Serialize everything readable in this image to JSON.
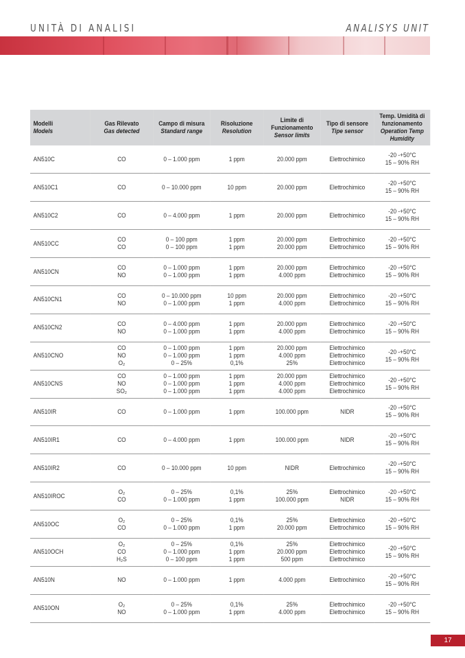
{
  "header": {
    "left": "UNITÀ DI ANALISI",
    "right": "ANALISYS UNIT"
  },
  "colors": {
    "accent": "#b8202c",
    "table_header": "#d5d6d8"
  },
  "columns": [
    {
      "it": "Modelli",
      "en": "Models"
    },
    {
      "it": "Gas Rilevato",
      "en": "Gas detected"
    },
    {
      "it": "Campo di misura",
      "en": "Standard range"
    },
    {
      "it": "Risoluzione",
      "en": "Resolution"
    },
    {
      "it": "Limite di Funzionamento",
      "en": "Sensor limits"
    },
    {
      "it": "Tipo di sensore",
      "en": "Tipe sensor"
    },
    {
      "it": "Temp. Umidità di funzionamento",
      "en": "Operation Temp Humidity"
    }
  ],
  "rows": [
    {
      "model": "AN510C",
      "gas": [
        "CO"
      ],
      "range": [
        "0 – 1.000 ppm"
      ],
      "res": [
        "1 ppm"
      ],
      "limit": [
        "20.000 ppm"
      ],
      "sensor": [
        "Elettrochimico"
      ],
      "temp": [
        "-20 -+50°C",
        "15 – 90% RH"
      ]
    },
    {
      "model": "AN510C1",
      "gas": [
        "CO"
      ],
      "range": [
        "0 – 10.000 ppm"
      ],
      "res": [
        "10 ppm"
      ],
      "limit": [
        "20.000 ppm"
      ],
      "sensor": [
        "Elettrochimico"
      ],
      "temp": [
        "-20 -+50°C",
        "15 – 90% RH"
      ]
    },
    {
      "model": "AN510C2",
      "gas": [
        "CO"
      ],
      "range": [
        "0 – 4.000 ppm"
      ],
      "res": [
        "1 ppm"
      ],
      "limit": [
        "20.000 ppm"
      ],
      "sensor": [
        "Elettrochimico"
      ],
      "temp": [
        "-20 -+50°C",
        "15 – 90% RH"
      ]
    },
    {
      "model": "AN510CC",
      "gas": [
        "CO",
        "CO"
      ],
      "range": [
        "0 – 100 ppm",
        "0 – 100 ppm"
      ],
      "res": [
        "1 ppm",
        "1 ppm"
      ],
      "limit": [
        "20.000 ppm",
        "20.000 ppm"
      ],
      "sensor": [
        "Elettrochimico",
        "Elettrochimico"
      ],
      "temp": [
        "-20 -+50°C",
        "15 – 90% RH"
      ]
    },
    {
      "model": "AN510CN",
      "gas": [
        "CO",
        "NO"
      ],
      "range": [
        "0 – 1.000 ppm",
        "0 – 1.000 ppm"
      ],
      "res": [
        "1 ppm",
        "1 ppm"
      ],
      "limit": [
        "20.000 ppm",
        "4.000 ppm"
      ],
      "sensor": [
        "Elettrochimico",
        "Elettrochimico"
      ],
      "temp": [
        "-20 -+50°C",
        "15 – 90% RH"
      ]
    },
    {
      "model": "AN510CN1",
      "gas": [
        "CO",
        "NO"
      ],
      "range": [
        "0 – 10.000 ppm",
        "0 – 1.000 ppm"
      ],
      "res": [
        "10 ppm",
        "1 ppm"
      ],
      "limit": [
        "20.000 ppm",
        "4.000 ppm"
      ],
      "sensor": [
        "Elettrochimico",
        "Elettrochimico"
      ],
      "temp": [
        "-20 -+50°C",
        "15 – 90% RH"
      ]
    },
    {
      "model": "AN510CN2",
      "gas": [
        "CO",
        "NO"
      ],
      "range": [
        "0 – 4.000 ppm",
        "0 – 1.000 ppm"
      ],
      "res": [
        "1 ppm",
        "1 ppm"
      ],
      "limit": [
        "20.000 ppm",
        "4.000 ppm"
      ],
      "sensor": [
        "Elettrochimico",
        "Elettrochimico"
      ],
      "temp": [
        "-20 -+50°C",
        "15 – 90% RH"
      ]
    },
    {
      "model": "AN510CNO",
      "gas": [
        "CO",
        "NO",
        "O₂"
      ],
      "range": [
        "0 – 1.000 ppm",
        "0 – 1.000 ppm",
        "0 – 25%"
      ],
      "res": [
        "1 ppm",
        "1 ppm",
        "0,1%"
      ],
      "limit": [
        "20.000 ppm",
        "4.000 ppm",
        "25%"
      ],
      "sensor": [
        "Elettrochimico",
        "Elettrochimico",
        "Elettrochimico"
      ],
      "temp": [
        "-20 -+50°C",
        "15 – 90% RH"
      ]
    },
    {
      "model": "AN510CNS",
      "gas": [
        "CO",
        "NO",
        "SO₂"
      ],
      "range": [
        "0 – 1.000 ppm",
        "0 – 1.000 ppm",
        "0 – 1.000 ppm"
      ],
      "res": [
        "1 ppm",
        "1 ppm",
        "1 ppm"
      ],
      "limit": [
        "20.000 ppm",
        "4.000 ppm",
        "4.000 ppm"
      ],
      "sensor": [
        "Elettrochimico",
        "Elettrochimico",
        "Elettrochimico"
      ],
      "temp": [
        "-20 -+50°C",
        "15 – 90% RH"
      ]
    },
    {
      "model": "AN510IR",
      "gas": [
        "CO"
      ],
      "range": [
        "0 – 1.000 ppm"
      ],
      "res": [
        "1 ppm"
      ],
      "limit": [
        "100.000 ppm"
      ],
      "sensor": [
        "NIDR"
      ],
      "temp": [
        "-20 -+50°C",
        "15 – 90% RH"
      ]
    },
    {
      "model": "AN510IR1",
      "gas": [
        "CO"
      ],
      "range": [
        "0 – 4.000 ppm"
      ],
      "res": [
        "1 ppm"
      ],
      "limit": [
        "100.000 ppm"
      ],
      "sensor": [
        "NIDR"
      ],
      "temp": [
        "-20 -+50°C",
        "15 – 90% RH"
      ]
    },
    {
      "model": "AN510IR2",
      "gas": [
        "CO"
      ],
      "range": [
        "0 – 10.000 ppm"
      ],
      "res": [
        "10 ppm"
      ],
      "limit": [
        "NIDR"
      ],
      "sensor": [
        "Elettrochimico"
      ],
      "temp": [
        "-20 -+50°C",
        "15 – 90% RH"
      ]
    },
    {
      "model": "AN510IROC",
      "gas": [
        "O₂",
        "CO"
      ],
      "range": [
        "0 – 25%",
        "0 – 1.000 ppm"
      ],
      "res": [
        "0,1%",
        "1 ppm"
      ],
      "limit": [
        "25%",
        "100.000 ppm"
      ],
      "sensor": [
        "Elettrochimico",
        "NIDR"
      ],
      "temp": [
        "-20 -+50°C",
        "15 – 90% RH"
      ]
    },
    {
      "model": "AN510OC",
      "gas": [
        "O₂",
        "CO"
      ],
      "range": [
        "0 – 25%",
        "0 – 1.000 ppm"
      ],
      "res": [
        "0,1%",
        "1 ppm"
      ],
      "limit": [
        "25%",
        "20.000 ppm"
      ],
      "sensor": [
        "Elettrochimico",
        "Elettrochimico"
      ],
      "temp": [
        "-20 -+50°C",
        "15 – 90% RH"
      ]
    },
    {
      "model": "AN510OCH",
      "gas": [
        "O₂",
        "CO",
        "H₂S"
      ],
      "range": [
        "0 – 25%",
        "0 – 1.000 ppm",
        "0 – 100 ppm"
      ],
      "res": [
        "0,1%",
        "1 ppm",
        "1 ppm"
      ],
      "limit": [
        "25%",
        "20.000 ppm",
        "500 ppm"
      ],
      "sensor": [
        "Elettrochimico",
        "Elettrochimico",
        "Elettrochimico"
      ],
      "temp": [
        "-20 -+50°C",
        "15 – 90% RH"
      ]
    },
    {
      "model": "AN510N",
      "gas": [
        "NO"
      ],
      "range": [
        "0 – 1.000 ppm"
      ],
      "res": [
        "1 ppm"
      ],
      "limit": [
        "4.000 ppm"
      ],
      "sensor": [
        "Elettrochimico"
      ],
      "temp": [
        "-20 -+50°C",
        "15 – 90% RH"
      ]
    },
    {
      "model": "AN510ON",
      "gas": [
        "O₂",
        "NO"
      ],
      "range": [
        "0 – 25%",
        "0 – 1.000 ppm"
      ],
      "res": [
        "0,1%",
        "1 ppm"
      ],
      "limit": [
        "25%",
        "4.000 ppm"
      ],
      "sensor": [
        "Elettrochimico",
        "Elettrochimico"
      ],
      "temp": [
        "-20 -+50°C",
        "15 – 90% RH"
      ]
    }
  ],
  "page_number": "17"
}
